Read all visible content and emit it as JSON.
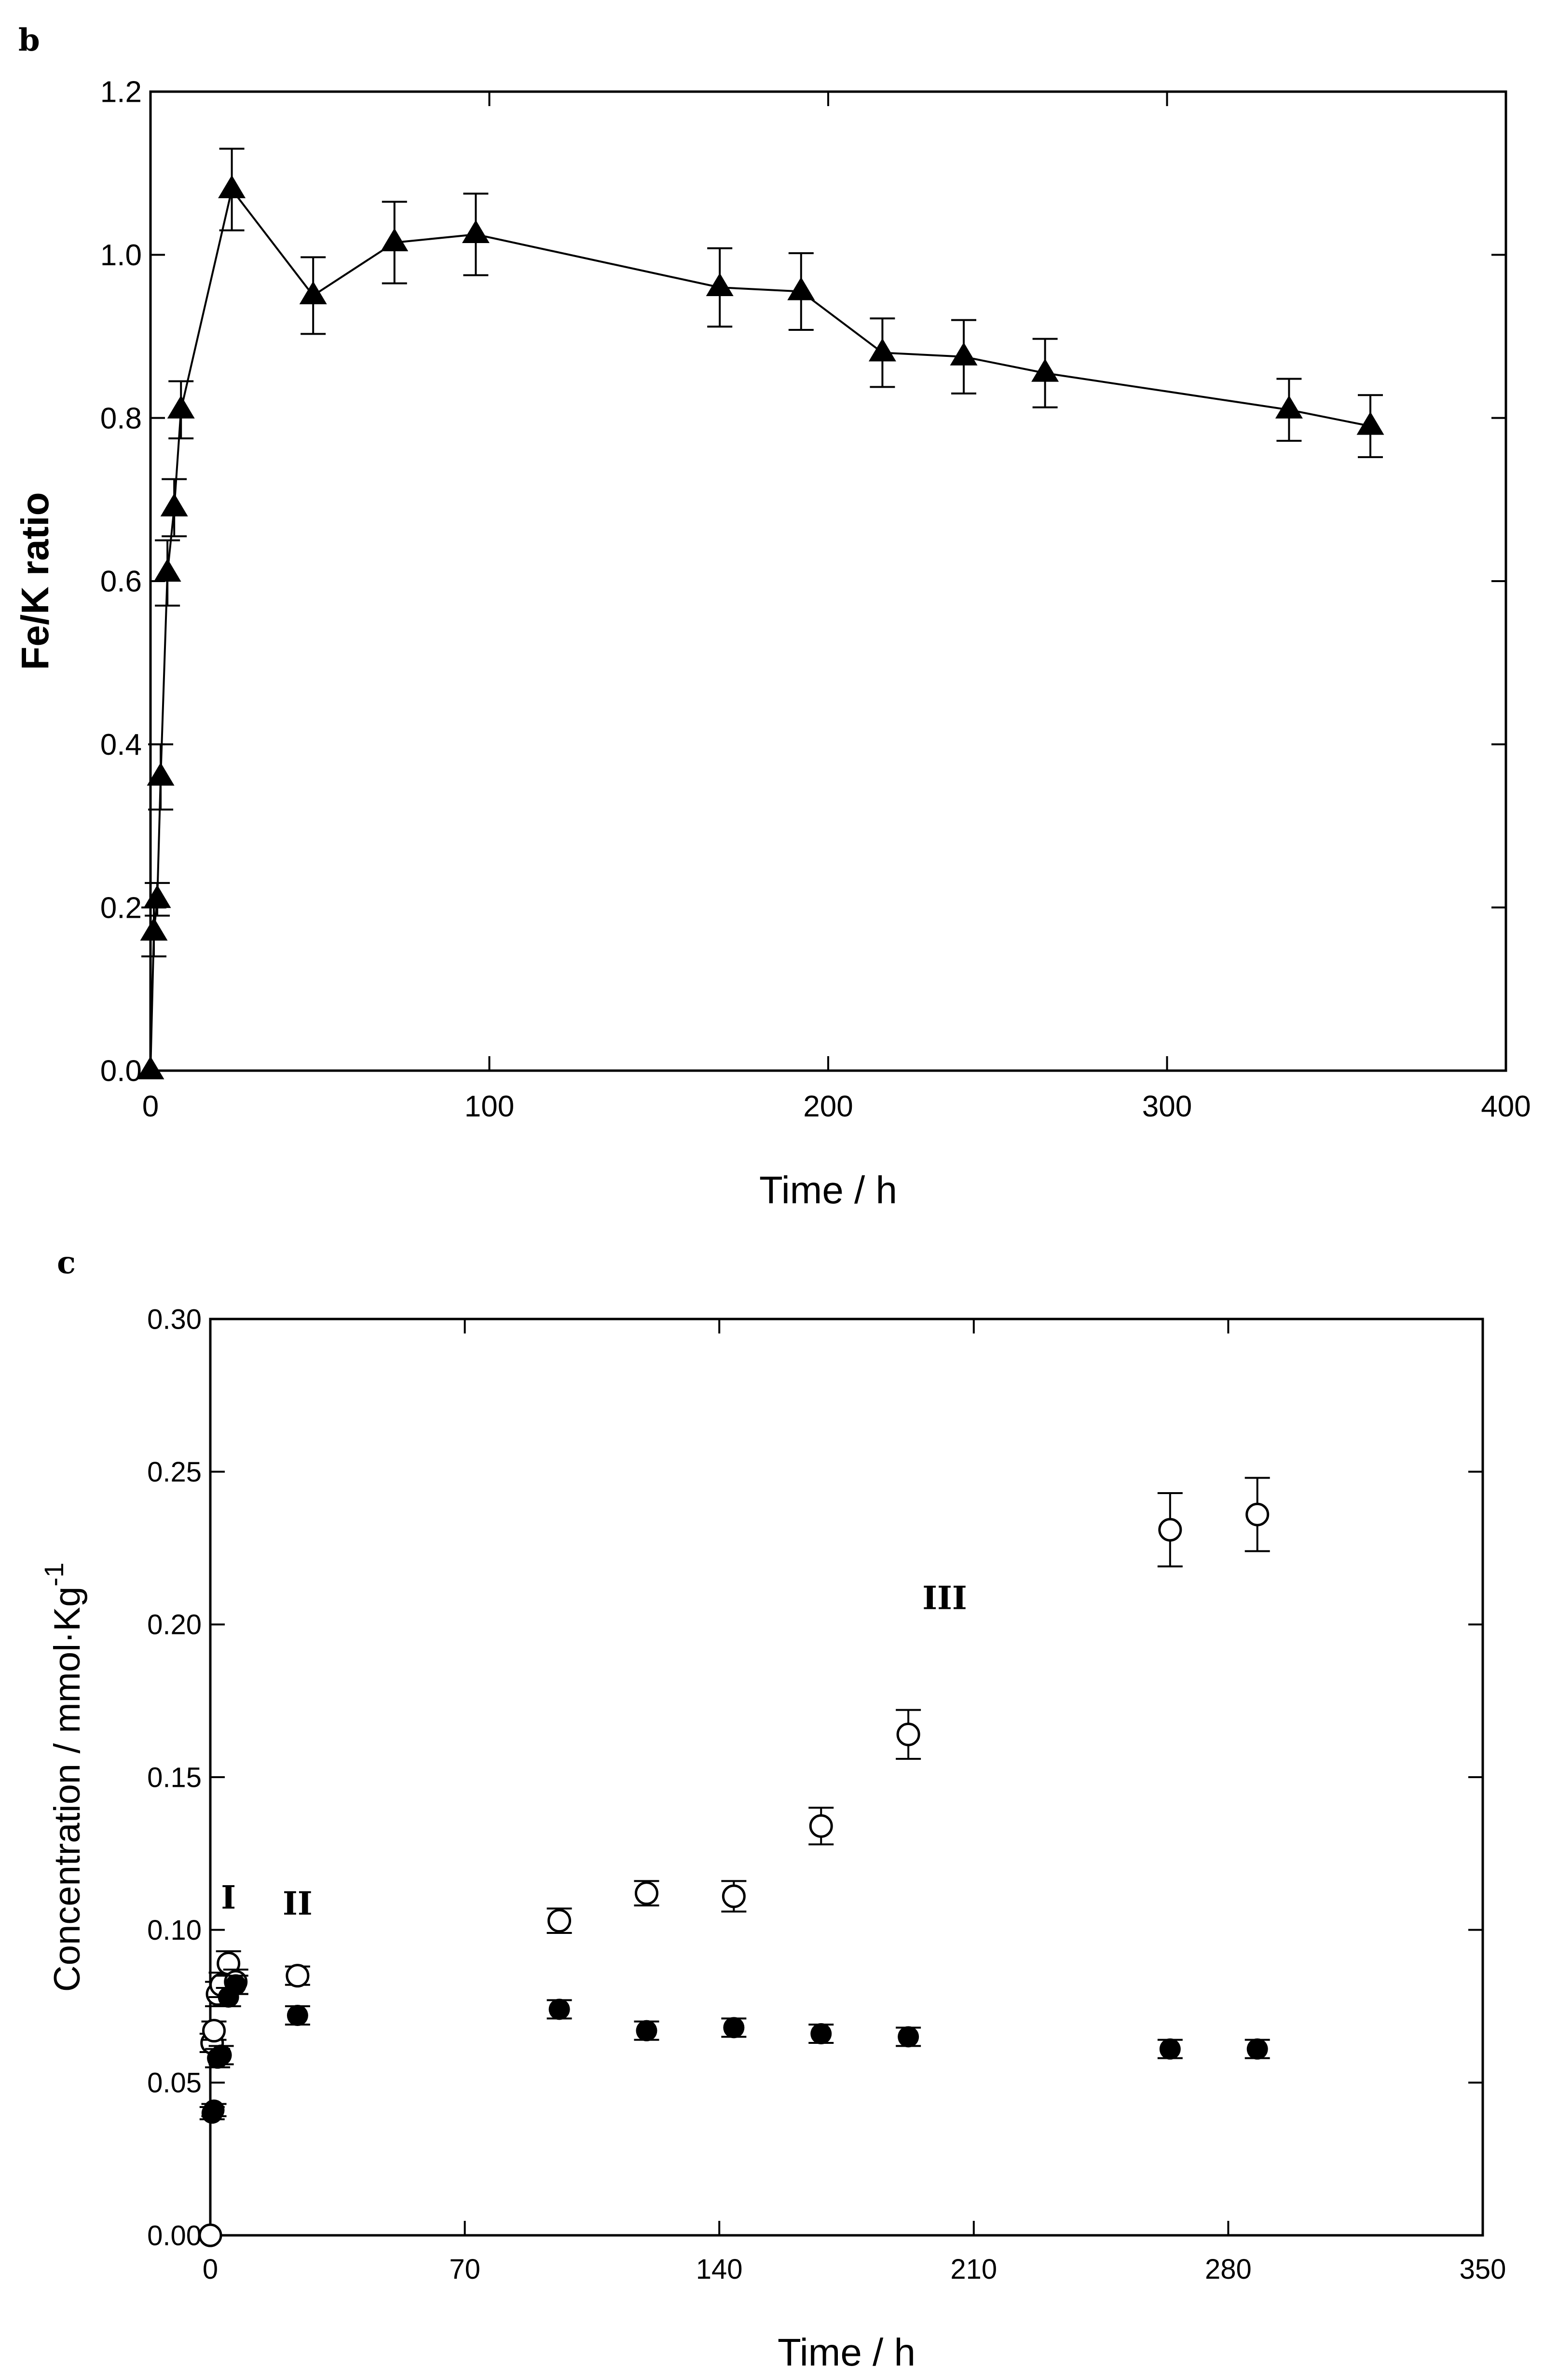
{
  "colors": {
    "ink": "#000000",
    "background": "#ffffff",
    "open_marker_fill": "#ffffff"
  },
  "chart_data": [
    {
      "type": "line",
      "panel_label": "b",
      "title": "",
      "xlabel": "Time / h",
      "ylabel": "Fe/K ratio",
      "xlim": [
        0,
        400
      ],
      "ylim": [
        0,
        1.2
      ],
      "x_ticks": [
        0,
        100,
        200,
        300,
        400
      ],
      "y_ticks": [
        0.0,
        0.2,
        0.4,
        0.6,
        0.8,
        1.0,
        1.2
      ],
      "x_tick_labels": [
        "0",
        "100",
        "200",
        "300",
        "400"
      ],
      "y_tick_labels": [
        "0.0",
        "0.2",
        "0.4",
        "0.6",
        "0.8",
        "1.0",
        "1.2"
      ],
      "grid": false,
      "legend": "none",
      "series": [
        {
          "marker": "filled-triangle",
          "line": true,
          "x": [
            0,
            1,
            2,
            3,
            5,
            7,
            9,
            24,
            48,
            72,
            96,
            168,
            192,
            216,
            240,
            264,
            336,
            360
          ],
          "y": [
            0.0,
            0.17,
            0.21,
            0.36,
            0.61,
            0.69,
            0.81,
            1.08,
            0.95,
            1.015,
            1.025,
            0.96,
            0.955,
            0.88,
            0.875,
            0.855,
            0.81,
            0.79
          ],
          "err": [
            0,
            0.03,
            0.02,
            0.04,
            0.04,
            0.035,
            0.035,
            0.05,
            0.047,
            0.05,
            0.05,
            0.048,
            0.047,
            0.042,
            0.045,
            0.042,
            0.038,
            0.038
          ]
        }
      ]
    },
    {
      "type": "scatter",
      "panel_label": "c",
      "title": "",
      "xlabel": "Time / h",
      "ylabel": "Concentration / mmol·Kg",
      "ylabel_superscript": "-1",
      "xlim": [
        0,
        350
      ],
      "ylim": [
        0,
        0.3
      ],
      "x_ticks": [
        0,
        70,
        140,
        210,
        280,
        350
      ],
      "y_ticks": [
        0.0,
        0.05,
        0.1,
        0.15,
        0.2,
        0.25,
        0.3
      ],
      "x_tick_labels": [
        "0",
        "70",
        "140",
        "210",
        "280",
        "350"
      ],
      "y_tick_labels": [
        "0.00",
        "0.05",
        "0.10",
        "0.15",
        "0.20",
        "0.25",
        "0.30"
      ],
      "grid": false,
      "legend": "none",
      "annotations": [
        {
          "text": "I",
          "x": 5,
          "y": 0.107
        },
        {
          "text": "II",
          "x": 24,
          "y": 0.105
        },
        {
          "text": "III",
          "x": 202,
          "y": 0.205
        }
      ],
      "series": [
        {
          "marker": "open-circle",
          "x": [
            0,
            0.5,
            1,
            2,
            3,
            5,
            7,
            24,
            96,
            120,
            144,
            168,
            192,
            264,
            288
          ],
          "y": [
            0.0,
            0.063,
            0.067,
            0.079,
            0.082,
            0.089,
            0.083,
            0.085,
            0.103,
            0.112,
            0.111,
            0.134,
            0.164,
            0.231,
            0.236
          ],
          "err": [
            0,
            0.003,
            0.003,
            0.004,
            0.004,
            0.004,
            0.004,
            0.003,
            0.004,
            0.004,
            0.005,
            0.006,
            0.008,
            0.012,
            0.012
          ]
        },
        {
          "marker": "filled-circle",
          "x": [
            0.5,
            1,
            2,
            3,
            5,
            7,
            24,
            96,
            120,
            144,
            168,
            192,
            264,
            288
          ],
          "y": [
            0.04,
            0.041,
            0.058,
            0.059,
            0.078,
            0.082,
            0.072,
            0.074,
            0.067,
            0.068,
            0.066,
            0.065,
            0.061,
            0.061
          ],
          "err": [
            0.002,
            0.002,
            0.003,
            0.003,
            0.003,
            0.003,
            0.003,
            0.003,
            0.003,
            0.003,
            0.003,
            0.003,
            0.003,
            0.003
          ]
        }
      ]
    }
  ]
}
